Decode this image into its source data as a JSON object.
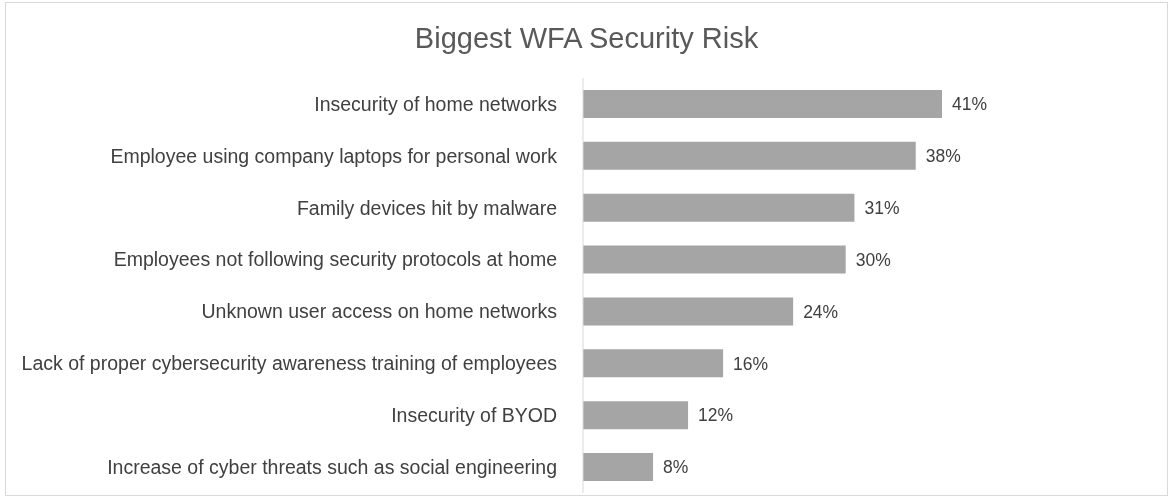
{
  "chart_data": {
    "type": "bar",
    "orientation": "horizontal",
    "title": "Biggest WFA Security Risk",
    "categories": [
      "Insecurity of home networks",
      "Employee using company laptops for personal work",
      "Family devices hit by malware",
      "Employees not following security protocols at home",
      "Unknown user access on home networks",
      "Lack of proper cybersecurity awareness training of employees",
      "Insecurity of BYOD",
      "Increase of cyber threats such as social engineering"
    ],
    "values": [
      41,
      38,
      31,
      30,
      24,
      16,
      12,
      8
    ],
    "value_labels": [
      "41%",
      "38%",
      "31%",
      "30%",
      "24%",
      "16%",
      "12%",
      "8%"
    ],
    "color": "#a5a5a5"
  }
}
